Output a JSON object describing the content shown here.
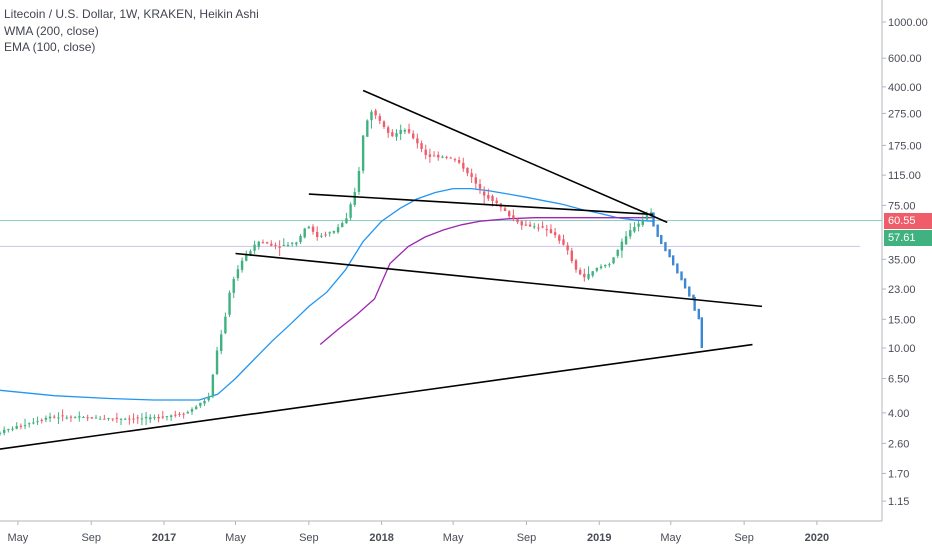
{
  "legend": {
    "title": "Litecoin / U.S. Dollar, 1W, KRAKEN, Heikin Ashi",
    "wma": "WMA (200, close)",
    "ema": "EMA (100, close)"
  },
  "price_tags": {
    "last": "60.55",
    "ema": "57.61"
  },
  "colors": {
    "up": "#3fb27f",
    "down": "#ef5d6b",
    "projection": "#3a87d6",
    "ema_line": "#2196f3",
    "wma_line": "#9c27b0",
    "trendline": "#000000",
    "last_price_tag": "#ef5d6b",
    "ema_tag": "#3fb27f"
  },
  "chart_data": {
    "type": "candlestick",
    "y_scale": "log",
    "y_ticks": [
      "1000.00",
      "600.00",
      "400.00",
      "275.00",
      "175.00",
      "115.00",
      "75.00",
      "35.00",
      "23.00",
      "15.00",
      "10.00",
      "6.50",
      "4.00",
      "2.60",
      "1.70",
      "1.15"
    ],
    "x_ticks": [
      "May",
      "Sep",
      "2017",
      "May",
      "Sep",
      "2018",
      "May",
      "Sep",
      "2019",
      "May",
      "Sep",
      "2020"
    ],
    "x_range": [
      "2016-04-01",
      "2020-03-15"
    ],
    "y_range": [
      0.95,
      1100
    ],
    "trend": [
      [
        "2016-04-01",
        3.0
      ],
      [
        "2016-07-01",
        3.8
      ],
      [
        "2016-10-01",
        3.7
      ],
      [
        "2016-12-15",
        3.7
      ],
      [
        "2017-02-15",
        4.0
      ],
      [
        "2017-03-25",
        5.0
      ],
      [
        "2017-04-05",
        9.0
      ],
      [
        "2017-04-20",
        15
      ],
      [
        "2017-05-01",
        25
      ],
      [
        "2017-05-20",
        35
      ],
      [
        "2017-06-15",
        45
      ],
      [
        "2017-07-20",
        42
      ],
      [
        "2017-08-20",
        45
      ],
      [
        "2017-09-05",
        58
      ],
      [
        "2017-09-20",
        48
      ],
      [
        "2017-10-20",
        52
      ],
      [
        "2017-11-10",
        62
      ],
      [
        "2017-11-28",
        100
      ],
      [
        "2017-12-08",
        200
      ],
      [
        "2017-12-20",
        290
      ],
      [
        "2018-01-05",
        250
      ],
      [
        "2018-01-25",
        200
      ],
      [
        "2018-02-15",
        220
      ],
      [
        "2018-03-05",
        190
      ],
      [
        "2018-03-25",
        150
      ],
      [
        "2018-04-25",
        150
      ],
      [
        "2018-05-15",
        140
      ],
      [
        "2018-06-05",
        115
      ],
      [
        "2018-06-25",
        90
      ],
      [
        "2018-07-15",
        80
      ],
      [
        "2018-08-10",
        65
      ],
      [
        "2018-09-01",
        57
      ],
      [
        "2018-10-01",
        55
      ],
      [
        "2018-10-25",
        50
      ],
      [
        "2018-11-15",
        40
      ],
      [
        "2018-11-30",
        30
      ],
      [
        "2018-12-15",
        27
      ],
      [
        "2019-01-05",
        31
      ],
      [
        "2019-01-25",
        33
      ],
      [
        "2019-02-15",
        44
      ],
      [
        "2019-03-05",
        55
      ],
      [
        "2019-03-20",
        60
      ],
      [
        "2019-04-01",
        69
      ]
    ],
    "projection": [
      [
        "2019-04-02",
        66
      ],
      [
        "2019-04-15",
        48
      ],
      [
        "2019-05-05",
        36
      ],
      [
        "2019-05-25",
        26
      ],
      [
        "2019-06-10",
        20
      ],
      [
        "2019-06-22",
        15
      ],
      [
        "2019-06-28",
        10
      ]
    ],
    "ema_series": [
      [
        "2016-04-01",
        5.5
      ],
      [
        "2016-07-01",
        5.1
      ],
      [
        "2016-10-01",
        4.9
      ],
      [
        "2016-12-15",
        4.8
      ],
      [
        "2017-03-01",
        4.8
      ],
      [
        "2017-04-01",
        5.2
      ],
      [
        "2017-05-01",
        6.5
      ],
      [
        "2017-06-01",
        8.5
      ],
      [
        "2017-07-01",
        11
      ],
      [
        "2017-08-01",
        14
      ],
      [
        "2017-09-01",
        18
      ],
      [
        "2017-10-01",
        22
      ],
      [
        "2017-11-01",
        30
      ],
      [
        "2017-12-01",
        45
      ],
      [
        "2018-01-01",
        60
      ],
      [
        "2018-02-01",
        72
      ],
      [
        "2018-03-01",
        82
      ],
      [
        "2018-04-01",
        90
      ],
      [
        "2018-05-01",
        95
      ],
      [
        "2018-06-01",
        95
      ],
      [
        "2018-07-01",
        92
      ],
      [
        "2018-08-01",
        88
      ],
      [
        "2018-09-01",
        84
      ],
      [
        "2018-10-01",
        80
      ],
      [
        "2018-11-01",
        76
      ],
      [
        "2018-12-01",
        71
      ],
      [
        "2019-01-01",
        67
      ],
      [
        "2019-02-01",
        63
      ],
      [
        "2019-03-01",
        61
      ],
      [
        "2019-04-01",
        60
      ]
    ],
    "wma_series": [
      [
        "2017-09-20",
        10.5
      ],
      [
        "2017-10-20",
        13
      ],
      [
        "2017-11-20",
        16
      ],
      [
        "2017-12-20",
        20
      ],
      [
        "2018-01-15",
        33
      ],
      [
        "2018-02-15",
        42
      ],
      [
        "2018-03-15",
        48
      ],
      [
        "2018-04-15",
        53
      ],
      [
        "2018-05-15",
        57
      ],
      [
        "2018-06-15",
        60
      ],
      [
        "2018-08-01",
        62
      ],
      [
        "2018-09-15",
        63
      ],
      [
        "2018-11-01",
        63
      ],
      [
        "2018-12-15",
        63
      ],
      [
        "2019-02-01",
        63
      ],
      [
        "2019-03-15",
        63
      ],
      [
        "2019-04-01",
        63
      ]
    ],
    "trendlines": [
      {
        "from": [
          "2016-04-01",
          2.4
        ],
        "to": [
          "2019-09-15",
          10.5
        ]
      },
      {
        "from": [
          "2017-05-01",
          38
        ],
        "to": [
          "2019-10-01",
          18
        ]
      },
      {
        "from": [
          "2017-09-01",
          88
        ],
        "to": [
          "2019-04-01",
          66
        ]
      },
      {
        "from": [
          "2017-12-01",
          380
        ],
        "to": [
          "2019-04-25",
          59
        ]
      }
    ],
    "horizontal_lines": [
      {
        "value": 60.55,
        "color": "#8fcfc0"
      },
      {
        "value": 42,
        "color": "#c9c4e8"
      }
    ]
  }
}
